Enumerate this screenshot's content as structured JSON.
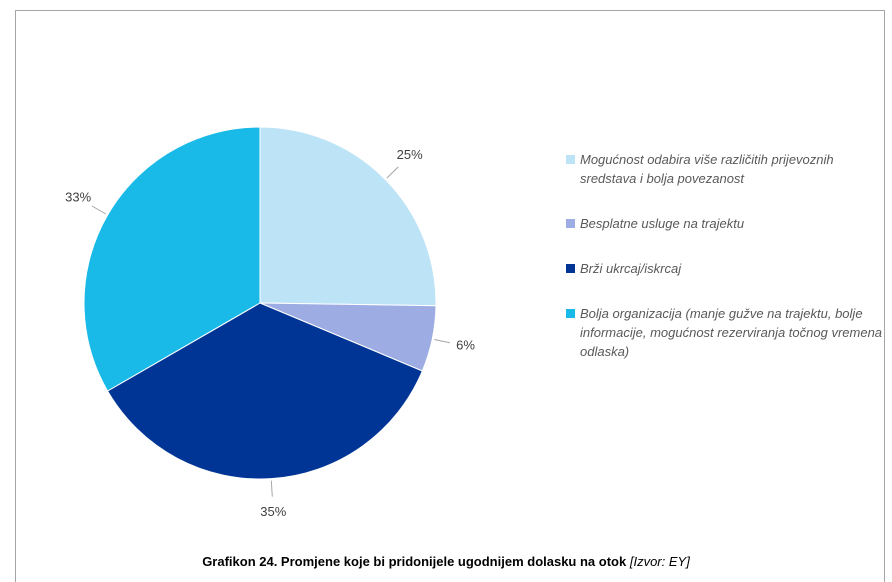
{
  "chart_data": {
    "type": "pie",
    "title": "Grafikon 24. Promjene koje bi pridonijele ugodnijem dolasku na otok",
    "source": "[Izvor: EY]",
    "categories": [
      "Mogućnost odabira više različitih prijevoznih sredstava i bolja povezanost",
      "Besplatne usluge na trajektu",
      "Brži ukrcaj/iskrcaj",
      "Bolja organizacija (manje gužve na trajektu, bolje informacije, mogućnost rezerviranja točnog vremena odlaska)"
    ],
    "values": [
      25,
      6,
      35,
      33
    ],
    "value_labels": [
      "25%",
      "6%",
      "35%",
      "33%"
    ],
    "colors": [
      "#bde3f6",
      "#9dade3",
      "#003595",
      "#19b9e8"
    ],
    "legend": "right"
  }
}
